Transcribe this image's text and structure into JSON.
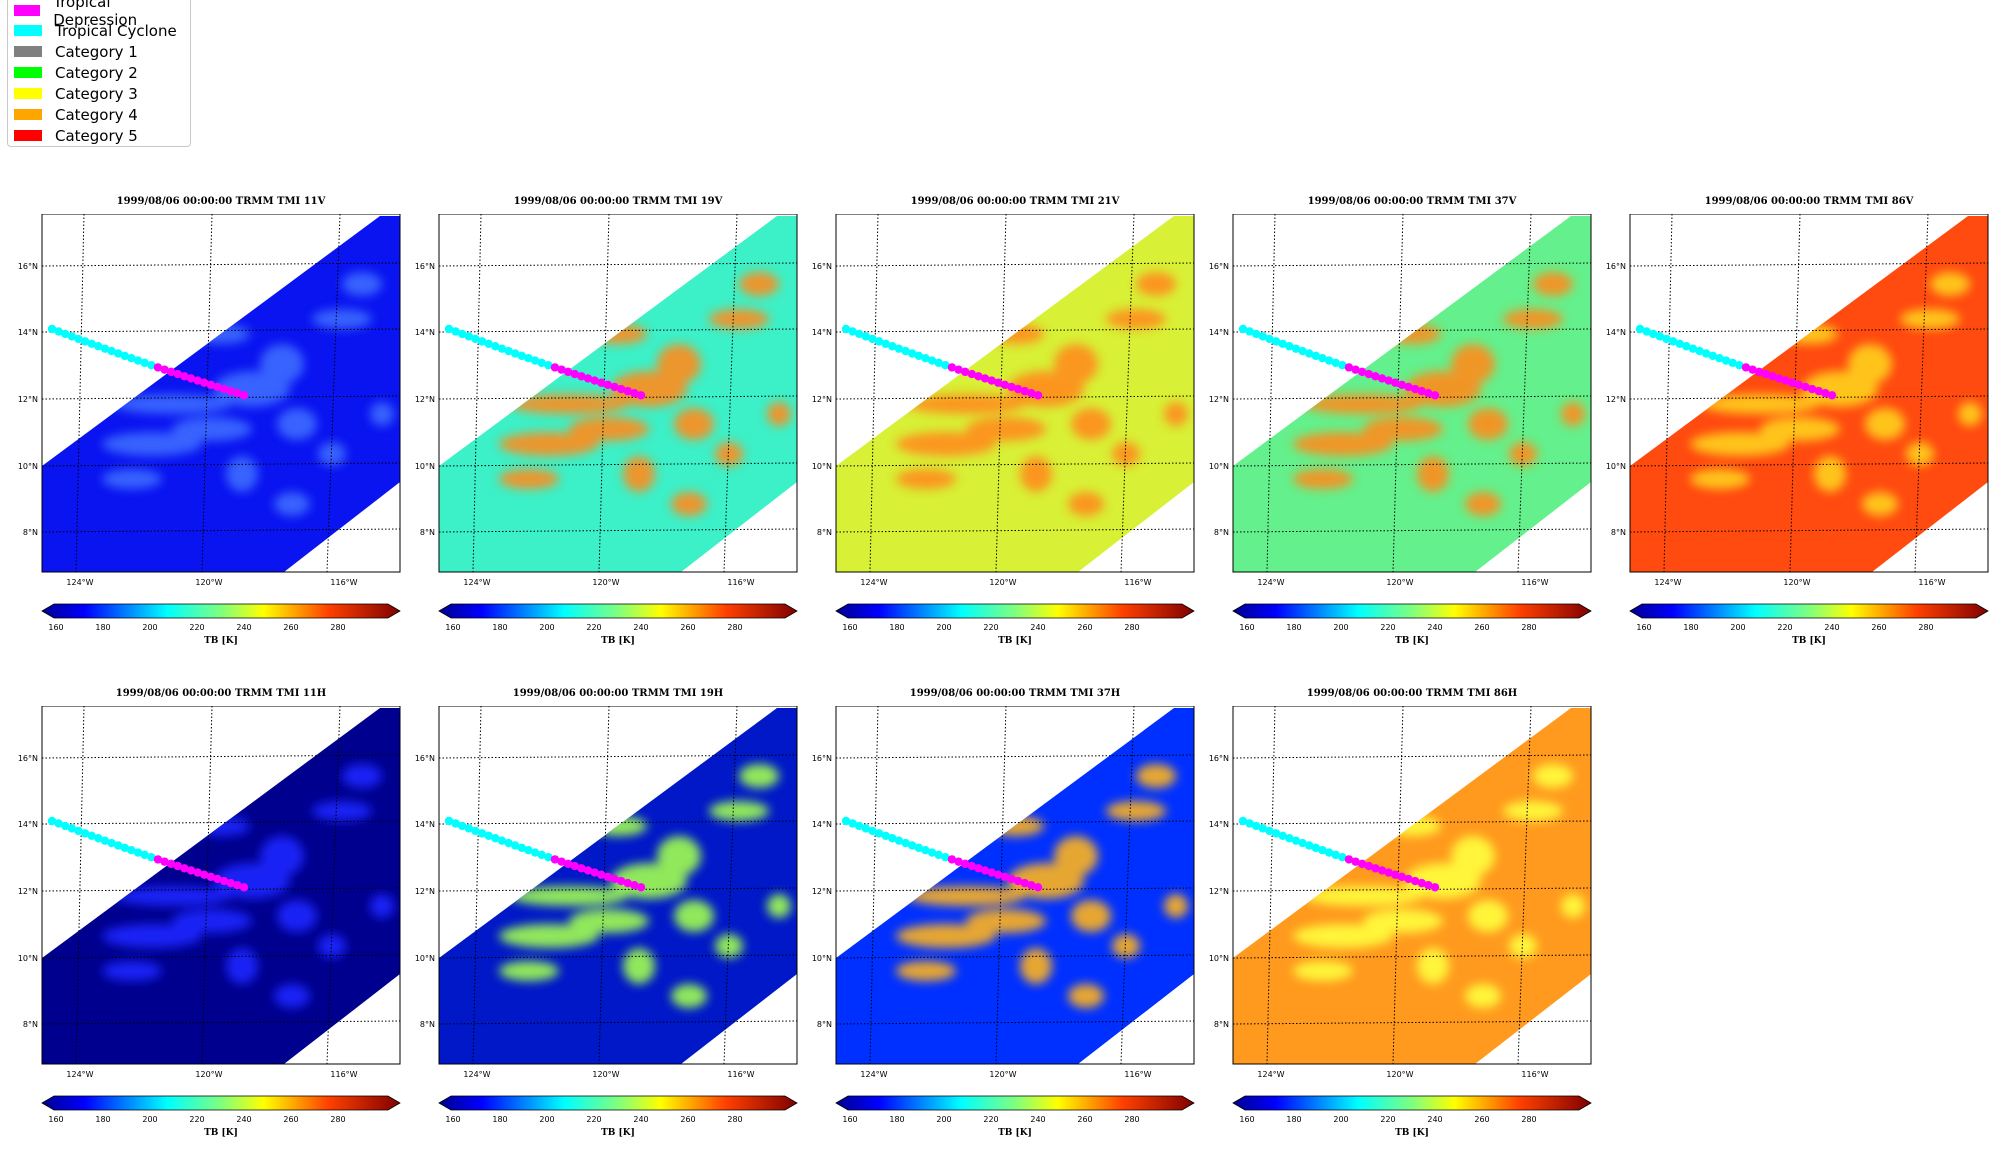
{
  "legend": {
    "items": [
      {
        "label": "Tropical Depression",
        "color": "#ff00ff"
      },
      {
        "label": "Tropical Cyclone",
        "color": "#00ffff"
      },
      {
        "label": "Category 1",
        "color": "#808080"
      },
      {
        "label": "Category 2",
        "color": "#00ff00"
      },
      {
        "label": "Category 3",
        "color": "#ffff00"
      },
      {
        "label": "Category 4",
        "color": "#ffa500"
      },
      {
        "label": "Category 5",
        "color": "#ff0000"
      }
    ]
  },
  "map": {
    "lat_labels": [
      "16°N",
      "14°N",
      "12°N",
      "10°N",
      "8°N"
    ],
    "lon_labels": [
      "124°W",
      "120°W",
      "116°W"
    ],
    "colorbar_ticks": [
      "160",
      "180",
      "200",
      "220",
      "240",
      "260",
      "280"
    ],
    "colorbar_label": "TB [K]"
  },
  "panels": [
    {
      "title": "1999/08/06 00:00:00  TRMM TMI 11V",
      "bg": "#0a14f0",
      "feature": "#3c6cff",
      "bg_name": "blue"
    },
    {
      "title": "1999/08/06 00:00:00  TRMM TMI 19V",
      "bg": "#3cf0c8",
      "feature": "#ff8c1e",
      "bg_name": "cyan-green"
    },
    {
      "title": "1999/08/06 00:00:00  TRMM TMI 21V",
      "bg": "#d8f036",
      "feature": "#ff8c1e",
      "bg_name": "yellow"
    },
    {
      "title": "1999/08/06 00:00:00  TRMM TMI 37V",
      "bg": "#64f08c",
      "feature": "#ff8c1e",
      "bg_name": "green"
    },
    {
      "title": "1999/08/06 00:00:00  TRMM TMI 86V",
      "bg": "#ff4a10",
      "feature": "#ffd21e",
      "bg_name": "red"
    },
    {
      "title": "1999/08/06 00:00:00  TRMM TMI 11H",
      "bg": "#00008f",
      "feature": "#1e28ff",
      "bg_name": "navy"
    },
    {
      "title": "1999/08/06 00:00:00  TRMM TMI 19H",
      "bg": "#0018c8",
      "feature": "#a0ff50",
      "bg_name": "blue"
    },
    {
      "title": "1999/08/06 00:00:00  TRMM TMI 37H",
      "bg": "#0030ff",
      "feature": "#ffb41e",
      "bg_name": "blue"
    },
    {
      "title": "1999/08/06 00:00:00  TRMM TMI 86H",
      "bg": "#ff9a1e",
      "feature": "#ffff3c",
      "bg_name": "orange"
    }
  ]
}
